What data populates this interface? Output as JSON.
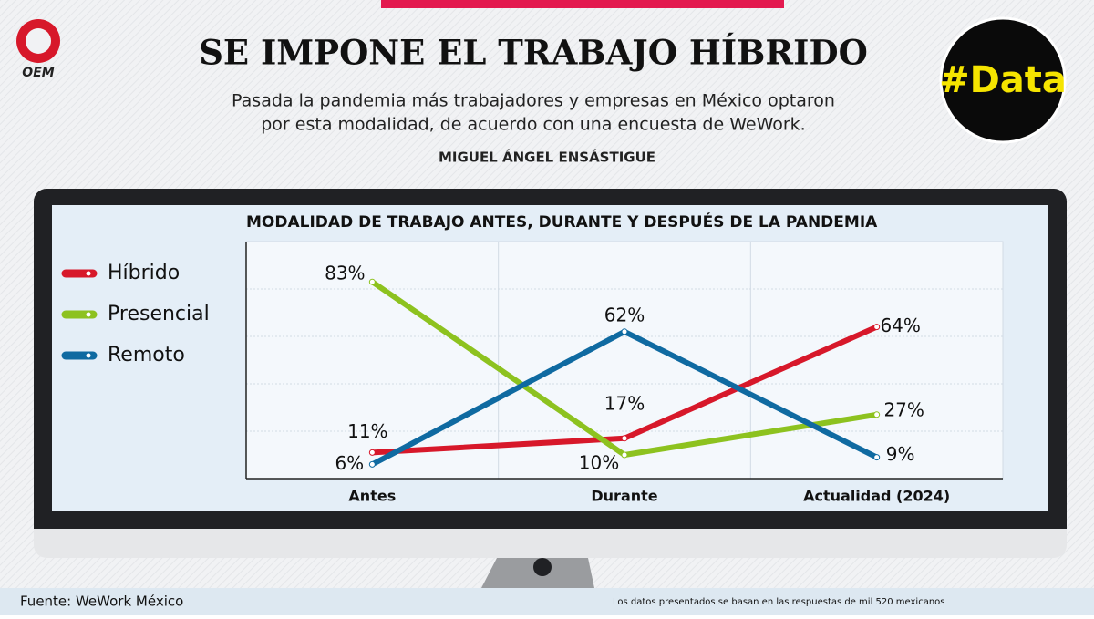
{
  "header": {
    "title": "SE IMPONE EL TRABAJO HÍBRIDO",
    "subtitle_lines": [
      "Pasada la pandemia más trabajadores y empresas en México optaron",
      "por esta modalidad, de acuerdo con una encuesta de WeWork."
    ],
    "author": "MIGUEL ÁNGEL ENSÁSTIGUE",
    "logo": "OEM",
    "badge": "#Data"
  },
  "chart_data": {
    "type": "line",
    "title": "MODALIDAD DE TRABAJO ANTES, DURANTE Y DESPUÉS DE LA PANDEMIA",
    "categories": [
      "Antes",
      "Durante",
      "Actualidad (2024)"
    ],
    "series": [
      {
        "name": "Híbrido",
        "color": "#d7182a",
        "values": [
          11,
          17,
          64
        ],
        "value_labels": [
          "11%",
          "17%",
          "64%"
        ]
      },
      {
        "name": "Presencial",
        "color": "#8dc21f",
        "values": [
          83,
          10,
          27
        ],
        "value_labels": [
          "83%",
          "10%",
          "27%"
        ]
      },
      {
        "name": "Remoto",
        "color": "#0f6aa1",
        "values": [
          6,
          62,
          9
        ],
        "value_labels": [
          "6%",
          "62%",
          "9%"
        ]
      }
    ],
    "ylim": [
      0,
      100
    ],
    "yticks": [
      0,
      20,
      40,
      60,
      80,
      100
    ],
    "grid": true,
    "legend": "left"
  },
  "footer": {
    "source": "Fuente: WeWork México",
    "note": "Los datos presentados se basan en las respuestas de mil 520 mexicanos"
  }
}
